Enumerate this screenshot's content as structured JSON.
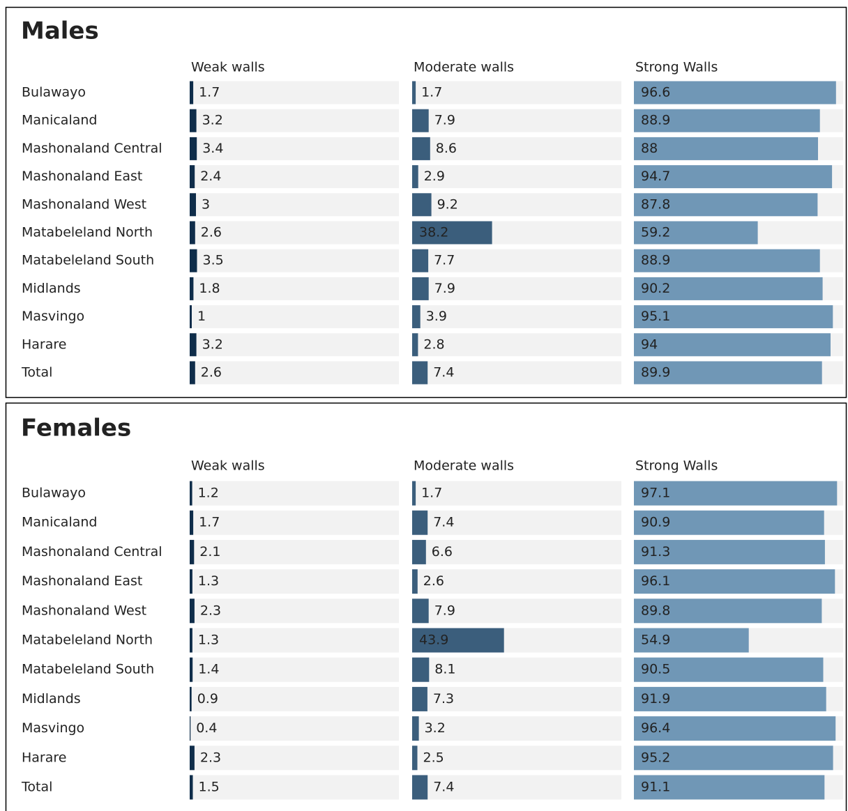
{
  "chart_data": [
    {
      "type": "bar",
      "title": "Males",
      "categories": [
        "Bulawayo",
        "Manicaland",
        "Mashonaland Central",
        "Mashonaland East",
        "Mashonaland West",
        "Matabeleland North",
        "Matabeleland South",
        "Midlands",
        "Masvingo",
        "Harare",
        "Total"
      ],
      "series": [
        {
          "name": "Weak walls",
          "color": "#0f2d4a",
          "values": [
            1.7,
            3.2,
            3.4,
            2.4,
            3,
            2.6,
            3.5,
            1.8,
            1,
            3.2,
            2.6
          ]
        },
        {
          "name": "Moderate walls",
          "color": "#3b5e7c",
          "values": [
            1.7,
            7.9,
            8.6,
            2.9,
            9.2,
            38.2,
            7.7,
            7.9,
            3.9,
            2.8,
            7.4
          ]
        },
        {
          "name": "Strong Walls",
          "color": "#7097b6",
          "values": [
            96.6,
            88.9,
            88,
            94.7,
            87.8,
            59.2,
            88.9,
            90.2,
            95.1,
            94,
            89.9
          ]
        }
      ],
      "xlim": [
        0,
        100
      ]
    },
    {
      "type": "bar",
      "title": "Females",
      "categories": [
        "Bulawayo",
        "Manicaland",
        "Mashonaland Central",
        "Mashonaland East",
        "Mashonaland West",
        "Matabeleland North",
        "Matabeleland South",
        "Midlands",
        "Masvingo",
        "Harare",
        "Total"
      ],
      "series": [
        {
          "name": "Weak walls",
          "color": "#0f2d4a",
          "values": [
            1.2,
            1.7,
            2.1,
            1.3,
            2.3,
            1.3,
            1.4,
            0.9,
            0.4,
            2.3,
            1.5
          ]
        },
        {
          "name": "Moderate walls",
          "color": "#3b5e7c",
          "values": [
            1.7,
            7.4,
            6.6,
            2.6,
            7.9,
            43.9,
            8.1,
            7.3,
            3.2,
            2.5,
            7.4
          ]
        },
        {
          "name": "Strong Walls",
          "color": "#7097b6",
          "values": [
            97.1,
            90.9,
            91.3,
            96.1,
            89.8,
            54.9,
            90.5,
            91.9,
            96.4,
            95.2,
            91.1
          ]
        }
      ],
      "xlim": [
        0,
        100
      ]
    }
  ]
}
